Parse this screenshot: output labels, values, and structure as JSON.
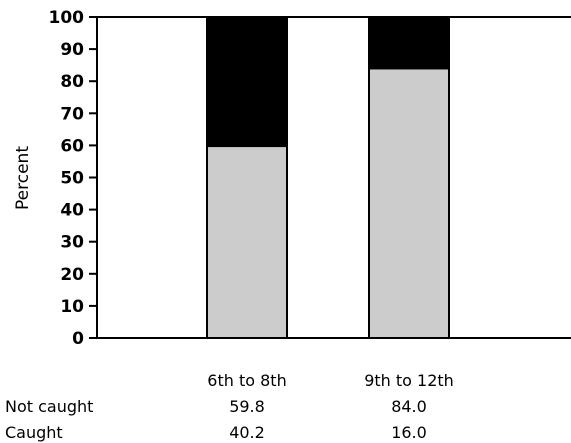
{
  "chart_data": {
    "type": "bar",
    "stacked": true,
    "percent": true,
    "ylabel": "Percent",
    "ylim": [
      0,
      100
    ],
    "yticks": [
      0,
      10,
      20,
      30,
      40,
      50,
      60,
      70,
      80,
      90,
      100
    ],
    "categories": [
      "6th to 8th",
      "9th to 12th"
    ],
    "series": [
      {
        "name": "Not caught",
        "values": [
          59.8,
          84.0
        ],
        "color": "#cccccc"
      },
      {
        "name": "Caught",
        "values": [
          40.2,
          16.0
        ],
        "color": "#000000"
      }
    ],
    "table": {
      "header": [
        "6th to 8th",
        "9th to 12th"
      ],
      "rows": [
        {
          "label": "Not caught",
          "cells": [
            "59.8",
            "84.0"
          ]
        },
        {
          "label": "Caught",
          "cells": [
            "40.2",
            "16.0"
          ]
        }
      ]
    },
    "grid": false,
    "legend": "none"
  }
}
